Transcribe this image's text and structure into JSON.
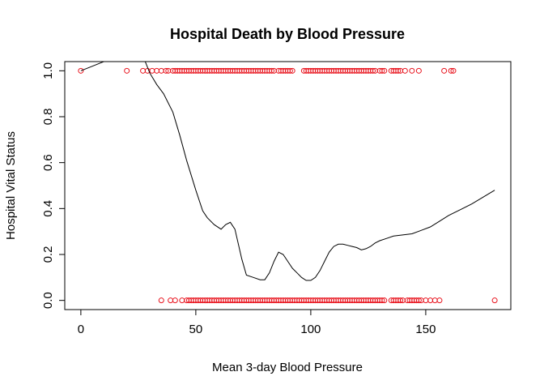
{
  "chart_data": {
    "type": "scatter",
    "title": "Hospital Death by Blood Pressure",
    "xlabel": "Mean 3-day Blood Pressure",
    "ylabel": "Hospital Vital Status",
    "xlim": [
      -7,
      187
    ],
    "ylim": [
      -0.04,
      1.04
    ],
    "x_ticks": [
      0,
      50,
      100,
      150
    ],
    "x_tick_labels": [
      "0",
      "50",
      "100",
      "150"
    ],
    "y_ticks": [
      0.0,
      0.2,
      0.4,
      0.6,
      0.8,
      1.0
    ],
    "y_tick_labels": [
      "0.0",
      "0.2",
      "0.4",
      "0.6",
      "0.8",
      "1.0"
    ],
    "grid": false,
    "legend": "none",
    "point_color": "#e8141e",
    "line_color": "#000000",
    "series": [
      {
        "kind": "points",
        "y": 1,
        "x": [
          0,
          20,
          27,
          29,
          31,
          33,
          35,
          37,
          38,
          40,
          41,
          42,
          43,
          44,
          45,
          46,
          47,
          48,
          49,
          50,
          51,
          52,
          53,
          54,
          55,
          56,
          57,
          58,
          59,
          60,
          61,
          62,
          63,
          64,
          65,
          66,
          67,
          68,
          69,
          70,
          71,
          72,
          73,
          74,
          75,
          76,
          77,
          78,
          79,
          80,
          81,
          82,
          83,
          84,
          86,
          87,
          88,
          89,
          90,
          91,
          92,
          97,
          98,
          99,
          100,
          101,
          102,
          103,
          104,
          105,
          106,
          107,
          108,
          109,
          110,
          111,
          112,
          113,
          114,
          115,
          116,
          117,
          118,
          119,
          120,
          121,
          122,
          123,
          124,
          125,
          126,
          127,
          128,
          130,
          131,
          132,
          135,
          136,
          137,
          138,
          139,
          141,
          144,
          147,
          158,
          161,
          162
        ]
      },
      {
        "kind": "points",
        "y": 0,
        "x": [
          35,
          39,
          41,
          44,
          46,
          47,
          48,
          49,
          50,
          51,
          52,
          53,
          54,
          55,
          56,
          57,
          58,
          59,
          60,
          61,
          62,
          63,
          64,
          65,
          66,
          67,
          68,
          69,
          70,
          71,
          72,
          73,
          74,
          75,
          76,
          77,
          78,
          79,
          80,
          81,
          82,
          83,
          84,
          85,
          86,
          87,
          88,
          89,
          90,
          91,
          92,
          93,
          94,
          95,
          96,
          97,
          98,
          99,
          100,
          101,
          102,
          103,
          104,
          105,
          106,
          107,
          108,
          109,
          110,
          111,
          112,
          113,
          114,
          115,
          116,
          117,
          118,
          119,
          120,
          121,
          122,
          123,
          124,
          125,
          126,
          127,
          128,
          129,
          130,
          131,
          132,
          135,
          136,
          137,
          138,
          139,
          140,
          142,
          143,
          144,
          145,
          146,
          147,
          148,
          150,
          152,
          154,
          156,
          180
        ]
      },
      {
        "kind": "smooth-line",
        "x": [
          0,
          5,
          10,
          15,
          20,
          25,
          28,
          30,
          33,
          36,
          40,
          43,
          46,
          50,
          53,
          55,
          58,
          61,
          63,
          65,
          67,
          70,
          72,
          75,
          78,
          80,
          82,
          84,
          86,
          88,
          90,
          92,
          94,
          96,
          98,
          100,
          102,
          104,
          106,
          108,
          110,
          112,
          114,
          116,
          118,
          120,
          122,
          124,
          126,
          128,
          130,
          133,
          136,
          140,
          144,
          148,
          152,
          156,
          160,
          165,
          170,
          175,
          180
        ],
        "y": [
          1.0,
          1.02,
          1.04,
          1.07,
          1.09,
          1.07,
          1.04,
          0.99,
          0.94,
          0.9,
          0.82,
          0.72,
          0.61,
          0.48,
          0.39,
          0.36,
          0.33,
          0.31,
          0.33,
          0.34,
          0.31,
          0.18,
          0.11,
          0.1,
          0.09,
          0.09,
          0.12,
          0.17,
          0.21,
          0.2,
          0.17,
          0.14,
          0.12,
          0.1,
          0.087,
          0.087,
          0.1,
          0.13,
          0.17,
          0.21,
          0.235,
          0.245,
          0.245,
          0.24,
          0.235,
          0.23,
          0.22,
          0.225,
          0.235,
          0.25,
          0.26,
          0.27,
          0.28,
          0.285,
          0.29,
          0.305,
          0.32,
          0.345,
          0.37,
          0.395,
          0.42,
          0.45,
          0.48
        ]
      }
    ]
  }
}
